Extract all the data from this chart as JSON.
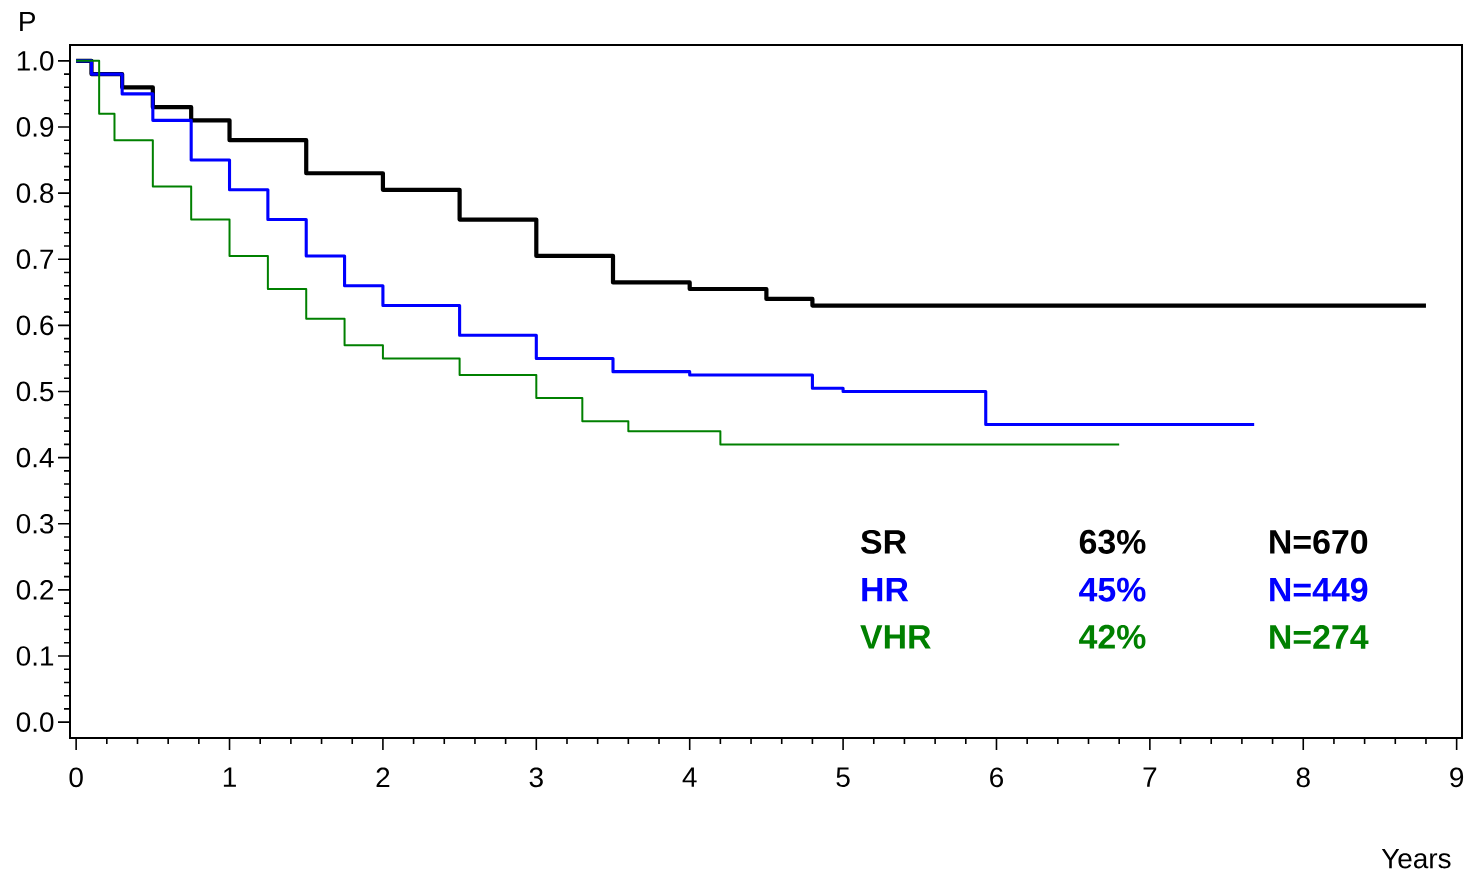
{
  "chart_data": {
    "type": "step",
    "xlabel": "Years",
    "ylabel": "P",
    "xlim": [
      -0.04,
      9.035
    ],
    "ylim": [
      -0.024,
      1.024
    ],
    "xticks": [
      0,
      1,
      2,
      3,
      4,
      5,
      6,
      7,
      8,
      9
    ],
    "yticks": [
      {
        "value": 0,
        "label": "0.0"
      },
      0.1,
      0.2,
      0.3,
      0.4,
      0.5,
      0.6,
      0.7,
      0.8,
      0.9,
      {
        "value": 1,
        "label": "1.0"
      }
    ],
    "grid": false,
    "legend": false,
    "series": [
      {
        "name": "SR",
        "color": "#000000",
        "x": [
          0,
          0.1,
          0.3,
          0.5,
          0.75,
          1.0,
          1.5,
          2.0,
          2.5,
          3.0,
          3.5,
          4.0,
          4.5,
          4.8,
          8.8
        ],
        "values": [
          1.0,
          0.98,
          0.96,
          0.93,
          0.91,
          0.88,
          0.83,
          0.805,
          0.76,
          0.705,
          0.665,
          0.655,
          0.64,
          0.63,
          0.63
        ]
      },
      {
        "name": "HR",
        "color": "#0000ff",
        "x": [
          0,
          0.1,
          0.3,
          0.5,
          0.75,
          1.0,
          1.25,
          1.5,
          1.75,
          2.0,
          2.5,
          3.0,
          3.5,
          4.0,
          4.8,
          5.0,
          5.93,
          7.68
        ],
        "values": [
          1.0,
          0.98,
          0.95,
          0.91,
          0.85,
          0.805,
          0.76,
          0.705,
          0.66,
          0.63,
          0.585,
          0.55,
          0.53,
          0.525,
          0.505,
          0.5,
          0.45,
          0.45
        ]
      },
      {
        "name": "VHR",
        "color": "#008000",
        "x": [
          0,
          0.15,
          0.25,
          0.5,
          0.75,
          1.0,
          1.25,
          1.5,
          1.75,
          2.0,
          2.5,
          3.0,
          3.3,
          3.6,
          4.2,
          6.8
        ],
        "values": [
          1.0,
          0.92,
          0.88,
          0.81,
          0.76,
          0.705,
          0.655,
          0.61,
          0.57,
          0.55,
          0.525,
          0.49,
          0.455,
          0.44,
          0.42,
          0.42
        ]
      }
    ],
    "annotations": [
      "63%",
      "N=670",
      "45%",
      "N=449",
      "42%",
      "N=274"
    ]
  }
}
